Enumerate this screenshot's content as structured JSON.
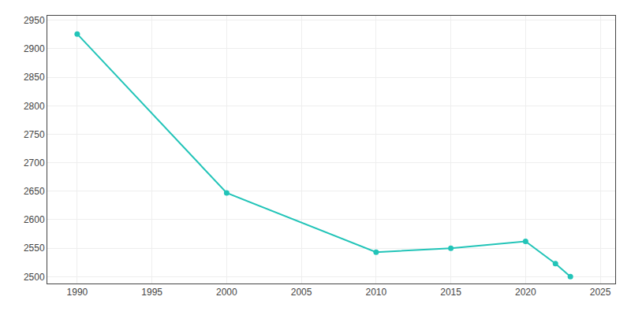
{
  "chart_data": {
    "type": "line",
    "x": [
      1990,
      2000,
      2010,
      2015,
      2020,
      2022,
      2023
    ],
    "values": [
      2926,
      2647,
      2543,
      2550,
      2562,
      2523,
      2500
    ],
    "color": "#22c4b8",
    "marker": "circle",
    "xlim": [
      1988,
      2026
    ],
    "xticks": [
      1990,
      1995,
      2000,
      2005,
      2010,
      2015,
      2020,
      2025
    ],
    "ylim": [
      2488,
      2958
    ],
    "yticks": [
      2500,
      2550,
      2600,
      2650,
      2700,
      2750,
      2800,
      2850,
      2900,
      2950
    ],
    "grid": true
  }
}
